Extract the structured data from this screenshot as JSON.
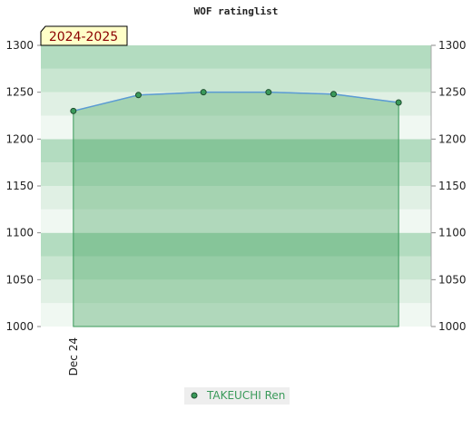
{
  "chart_data": {
    "type": "line",
    "title": "WOF ratinglist",
    "annotation": "2024-2025",
    "categories": [
      "Dec 24",
      null,
      null,
      null,
      null,
      null
    ],
    "series": [
      {
        "name": "TAKEUCHI Ren",
        "color": "#3a9a5a",
        "line_color": "#5b9bd5",
        "values": [
          1230,
          1247,
          1250,
          1250,
          1248,
          1239
        ]
      }
    ],
    "ylim": [
      1000,
      1300
    ],
    "yticks": [
      1000,
      1050,
      1100,
      1150,
      1200,
      1250,
      1300
    ],
    "y2lim": [
      1000,
      1300
    ],
    "y2ticks": [
      1000,
      1050,
      1100,
      1150,
      1200,
      1250,
      1300
    ]
  }
}
